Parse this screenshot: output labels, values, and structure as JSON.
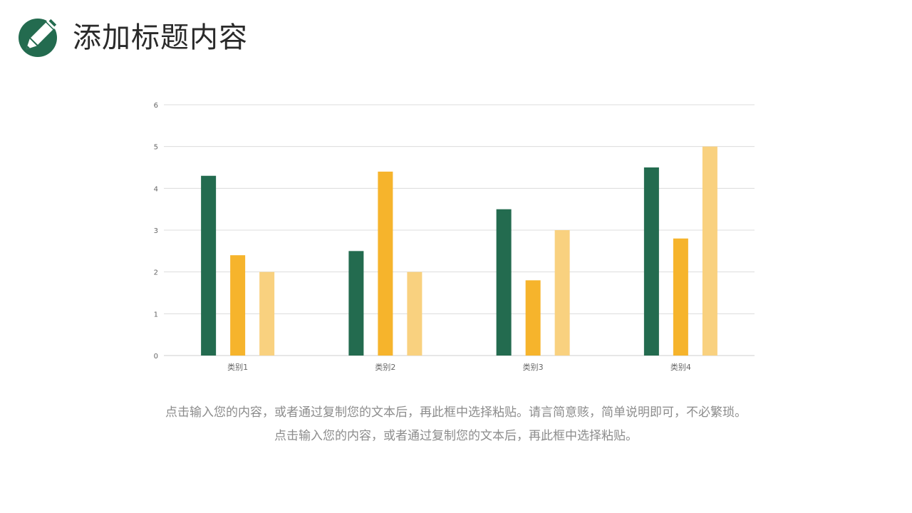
{
  "header": {
    "title": "添加标题内容",
    "logo_icon": "pencil-icon",
    "accent_color": "#236b4f"
  },
  "chart_data": {
    "type": "bar",
    "categories": [
      "类别1",
      "类别2",
      "类别3",
      "类别4"
    ],
    "series": [
      {
        "values": [
          4.3,
          2.5,
          3.5,
          4.5
        ],
        "color": "#236b4f"
      },
      {
        "values": [
          2.4,
          4.4,
          1.8,
          2.8
        ],
        "color": "#f6b42c"
      },
      {
        "values": [
          2.0,
          2.0,
          3.0,
          5.0
        ],
        "color": "#f9d17f"
      }
    ],
    "yticks": [
      "0",
      "1",
      "2",
      "3",
      "4",
      "5",
      "6"
    ],
    "ylim": [
      0,
      6
    ],
    "grid": true,
    "legend": "none"
  },
  "body": {
    "caption_line1": "点击输入您的内容，或者通过复制您的文本后，再此框中选择粘贴。请言简意赅，简单说明即可，不必繁琐。",
    "caption_line2": "点击输入您的内容，或者通过复制您的文本后，再此框中选择粘贴。"
  }
}
